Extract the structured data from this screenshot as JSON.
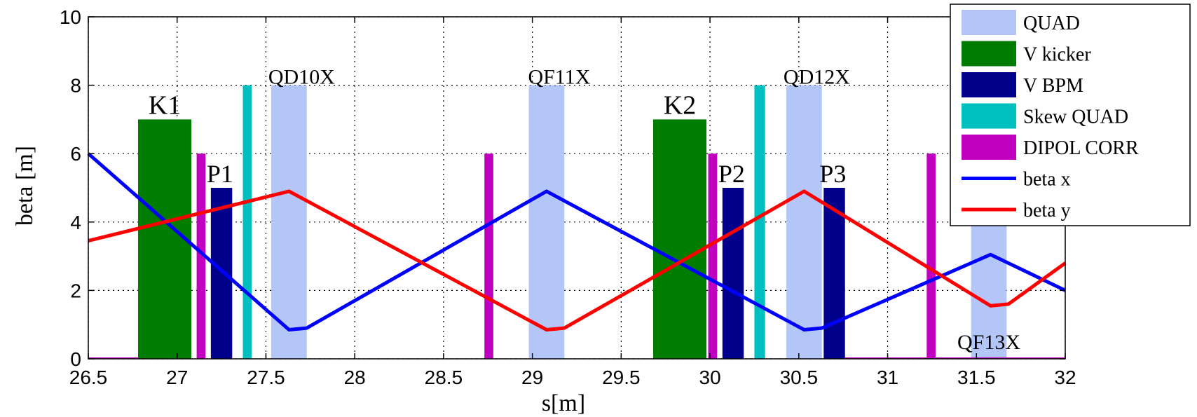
{
  "chart_data": {
    "type": "line",
    "title": "",
    "xlabel": "s[m]",
    "ylabel": "beta [m]",
    "xlim": [
      26.5,
      32
    ],
    "ylim": [
      0,
      10
    ],
    "xticks": [
      "26.5",
      "27",
      "27.5",
      "28",
      "28.5",
      "29",
      "29.5",
      "30",
      "30.5",
      "31",
      "31.5",
      "32"
    ],
    "yticks": [
      "0",
      "2",
      "4",
      "6",
      "8",
      "10"
    ],
    "grid": true,
    "legend_position": "top-right",
    "colors": {
      "quad": "#b3c6f7",
      "kicker": "#007c00",
      "bpm": "#00008b",
      "skew": "#00bfbf",
      "dipol": "#bf00bf",
      "beta_x": "#0000ff",
      "beta_y": "#ff0000"
    },
    "legend": [
      {
        "label": "QUAD",
        "kind": "quad"
      },
      {
        "label": "V kicker",
        "kind": "kicker"
      },
      {
        "label": "V BPM",
        "kind": "bpm"
      },
      {
        "label": "Skew QUAD",
        "kind": "skew"
      },
      {
        "label": "DIPOL CORR",
        "kind": "dipol"
      },
      {
        "label": "beta x",
        "kind": "beta_x"
      },
      {
        "label": "beta y",
        "kind": "beta_y"
      }
    ],
    "elements": [
      {
        "kind": "kicker",
        "x0": 26.78,
        "x1": 27.08,
        "height": 7,
        "label": "K1"
      },
      {
        "kind": "dipol",
        "x0": 27.11,
        "x1": 27.16,
        "height": 6,
        "label": ""
      },
      {
        "kind": "bpm",
        "x0": 27.19,
        "x1": 27.31,
        "height": 5,
        "label": "P1"
      },
      {
        "kind": "skew",
        "x0": 27.37,
        "x1": 27.42,
        "height": 8,
        "label": ""
      },
      {
        "kind": "quad",
        "x0": 27.53,
        "x1": 27.73,
        "height": 8,
        "label": "QD10X"
      },
      {
        "kind": "dipol",
        "x0": 28.73,
        "x1": 28.78,
        "height": 6,
        "label": ""
      },
      {
        "kind": "quad",
        "x0": 28.98,
        "x1": 29.18,
        "height": 8,
        "label": "QF11X"
      },
      {
        "kind": "kicker",
        "x0": 29.68,
        "x1": 29.98,
        "height": 7,
        "label": "K2"
      },
      {
        "kind": "dipol",
        "x0": 29.99,
        "x1": 30.04,
        "height": 6,
        "label": ""
      },
      {
        "kind": "bpm",
        "x0": 30.07,
        "x1": 30.19,
        "height": 5,
        "label": "P2"
      },
      {
        "kind": "skew",
        "x0": 30.25,
        "x1": 30.31,
        "height": 8,
        "label": ""
      },
      {
        "kind": "quad",
        "x0": 30.43,
        "x1": 30.63,
        "height": 8,
        "label": "QD12X"
      },
      {
        "kind": "bpm",
        "x0": 30.64,
        "x1": 30.76,
        "height": 5,
        "label": "P3"
      },
      {
        "kind": "dipol",
        "x0": 31.22,
        "x1": 31.27,
        "height": 6,
        "label": ""
      },
      {
        "kind": "quad",
        "x0": 31.47,
        "x1": 31.67,
        "height": 4.5,
        "label": "QF13X"
      }
    ],
    "series": [
      {
        "name": "beta x",
        "kind": "beta_x",
        "x": [
          26.5,
          27.63,
          27.73,
          29.08,
          30.53,
          30.63,
          31.58,
          32
        ],
        "y": [
          6.0,
          0.85,
          0.9,
          4.9,
          0.85,
          0.9,
          3.05,
          2.0
        ]
      },
      {
        "name": "beta y",
        "kind": "beta_y",
        "x": [
          26.5,
          27.63,
          29.08,
          29.18,
          30.53,
          31.58,
          31.68,
          32
        ],
        "y": [
          3.45,
          4.9,
          0.85,
          0.9,
          4.9,
          1.55,
          1.6,
          2.8
        ]
      }
    ]
  }
}
